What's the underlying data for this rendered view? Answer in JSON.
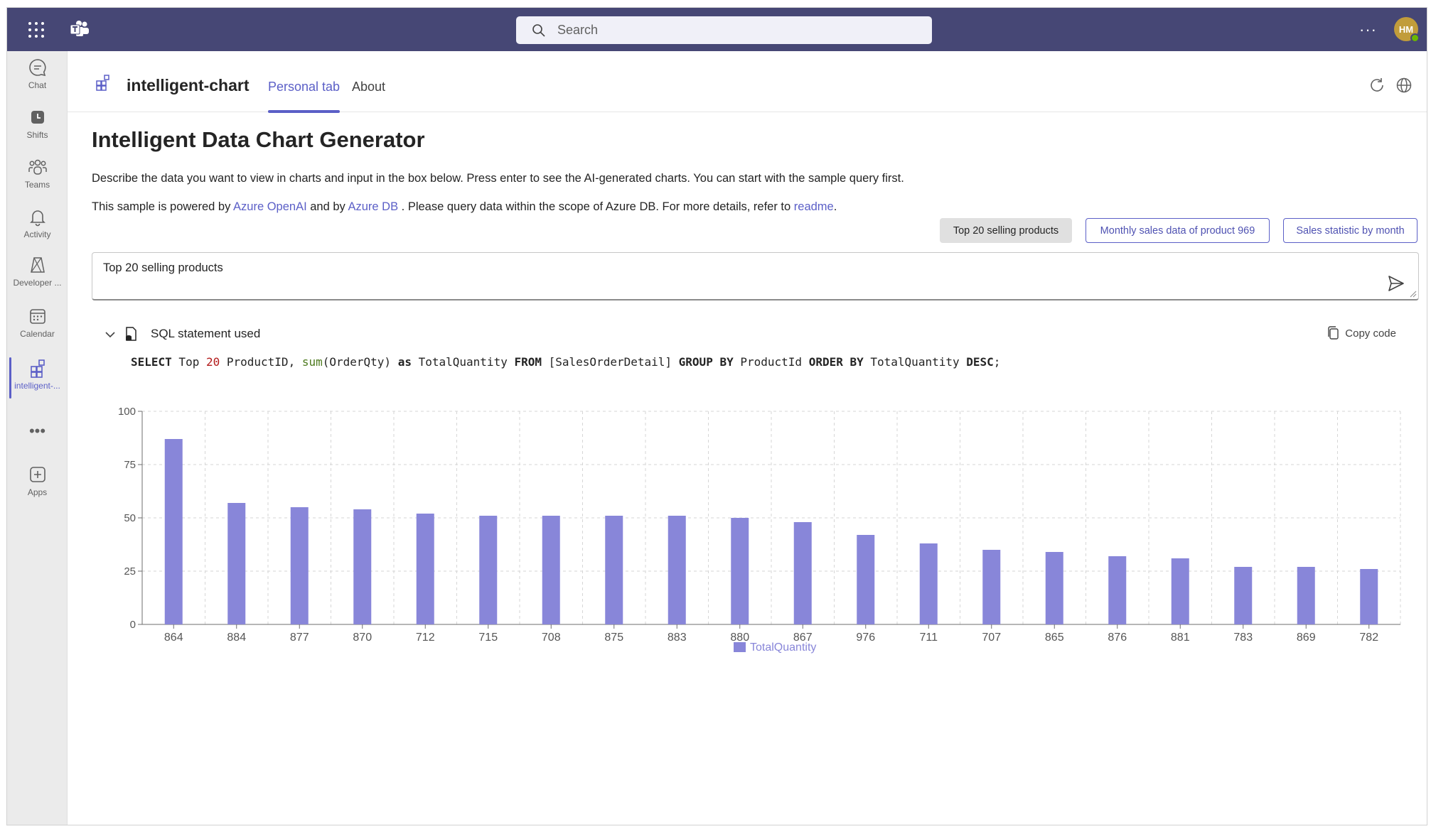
{
  "topbar": {
    "search_placeholder": "Search",
    "more_label": "···",
    "avatar_initials": "HM"
  },
  "rail": {
    "items": [
      {
        "label": "Chat",
        "icon": "chat-icon"
      },
      {
        "label": "Shifts",
        "icon": "shifts-icon"
      },
      {
        "label": "Teams",
        "icon": "teams-icon"
      },
      {
        "label": "Activity",
        "icon": "bell-icon"
      },
      {
        "label": "Developer ...",
        "icon": "developer-portal-icon"
      },
      {
        "label": "Calendar",
        "icon": "calendar-icon"
      },
      {
        "label": "intelligent-...",
        "icon": "app-grid-icon"
      },
      {
        "label": "Apps",
        "icon": "add-apps-icon"
      }
    ],
    "more_label": "•••"
  },
  "appheader": {
    "app_name": "intelligent-chart",
    "tabs": [
      {
        "label": "Personal tab",
        "active": true
      },
      {
        "label": "About",
        "active": false
      }
    ]
  },
  "main": {
    "title": "Intelligent Data Chart Generator",
    "description": "Describe the data you want to view in charts and input in the box below. Press enter to see the AI-generated charts. You can start with the sample query first.",
    "powered": {
      "prefix": "This sample is powered by ",
      "link1": "Azure OpenAI",
      "mid": " and by ",
      "link2": "Azure DB",
      "suffix": " . Please query data within the scope of Azure DB. For more details, refer to ",
      "link3": "readme",
      "end": "."
    },
    "sample_queries": [
      {
        "label": "Top 20 selling products",
        "selected": true
      },
      {
        "label": "Monthly sales data of product 969",
        "selected": false
      },
      {
        "label": "Sales statistic by month",
        "selected": false
      }
    ],
    "query_value": "Top 20 selling products",
    "sql_label": "SQL statement used",
    "copy_label": "Copy code",
    "sql": {
      "p1": "SELECT",
      "p2": " Top ",
      "p3": "20",
      "p4": " ProductID, ",
      "p5": "sum",
      "p6": "(OrderQty) ",
      "p7": "as",
      "p8": " TotalQuantity ",
      "p9": "FROM",
      "p10": " [SalesOrderDetail] ",
      "p11": "GROUP BY",
      "p12": " ProductId ",
      "p13": "ORDER BY",
      "p14": " TotalQuantity ",
      "p15": "DESC",
      "p16": ";"
    }
  },
  "colors": {
    "topbar": "#464775",
    "accent": "#5b5fc7",
    "bar": "#8886d9"
  },
  "chart_data": {
    "type": "bar",
    "categories": [
      "864",
      "884",
      "877",
      "870",
      "712",
      "715",
      "708",
      "875",
      "883",
      "880",
      "867",
      "976",
      "711",
      "707",
      "865",
      "876",
      "881",
      "783",
      "869",
      "782"
    ],
    "series": [
      {
        "name": "TotalQuantity",
        "values": [
          87,
          57,
          55,
          54,
          52,
          51,
          51,
          51,
          51,
          50,
          48,
          42,
          38,
          35,
          34,
          32,
          31,
          27,
          27,
          26
        ]
      }
    ],
    "ylim": [
      0,
      100
    ],
    "yticks": [
      0,
      25,
      50,
      75,
      100
    ],
    "grid": true,
    "legend": "bottom-center"
  }
}
